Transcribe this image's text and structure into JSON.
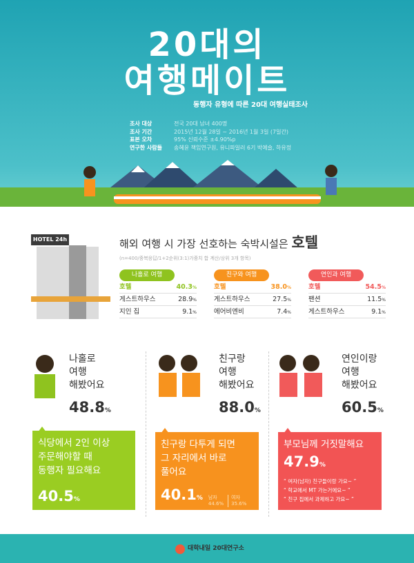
{
  "hero": {
    "title_line1": "20대의",
    "title_line2": "여행메이트",
    "subtitle": "동행자 유형에 따른 20대 여행실태조사",
    "info": [
      {
        "k": "조사 대상",
        "v": "전국 20대 남녀 400명"
      },
      {
        "k": "조사 기간",
        "v": "2015년 12월 28일 ~ 2016년 1월 3일 (7일간)"
      },
      {
        "k": "표본 오차",
        "v": "95% 신뢰수준 ±4.90%p"
      },
      {
        "k": "연구한 사람들",
        "v": "송혜윤 책임연구원, 유니파일러 6기 박예슬, 하유정"
      }
    ]
  },
  "lodging": {
    "sign": "HOTEL 24h",
    "question": "해외 여행 시 가장 선호하는 숙박시설은",
    "answer": "호텔",
    "note": "(n=400/중복응답/1+2순위(3:1)가중치 합 계산/상위 3개 항목)",
    "groups": [
      {
        "label": "나홀로 여행",
        "color": "#8fc31f",
        "rows": [
          {
            "n": "호텔",
            "v": "40.3"
          },
          {
            "n": "게스트하우스",
            "v": "28.9"
          },
          {
            "n": "지인 집",
            "v": "9.1"
          }
        ]
      },
      {
        "label": "친구와 여행",
        "color": "#f7931e",
        "rows": [
          {
            "n": "호텔",
            "v": "38.0"
          },
          {
            "n": "게스트하우스",
            "v": "27.5"
          },
          {
            "n": "에어비엔비",
            "v": "7.4"
          }
        ]
      },
      {
        "label": "연인과 여행",
        "color": "#f15a5a",
        "rows": [
          {
            "n": "호텔",
            "v": "54.5"
          },
          {
            "n": "팬션",
            "v": "11.5"
          },
          {
            "n": "게스트하우스",
            "v": "9.1"
          }
        ]
      }
    ]
  },
  "pct": "%",
  "experience": [
    {
      "label": [
        "나홀로",
        "여행",
        "해봤어요"
      ],
      "value": "48.8",
      "box_color": "#9acd22",
      "box_text": [
        "식당에서 2인 이상",
        "주문해야할 때",
        "동행자 필요해요"
      ],
      "box_value": "40.5"
    },
    {
      "label": [
        "친구랑",
        "여행",
        "해봤어요"
      ],
      "value": "88.0",
      "box_color": "#f7921e",
      "box_text": [
        "친구랑 다투게 되면",
        "그 자리에서 바로",
        "풀어요"
      ],
      "box_value": "40.1",
      "male_label": "남자",
      "male_value": "44.6",
      "female_label": "여자",
      "female_value": "35.6"
    },
    {
      "label": [
        "연인이랑",
        "여행",
        "해봤어요"
      ],
      "value": "60.5",
      "box_color": "#f25454",
      "box_text": [
        "부모님께 거짓말해요"
      ],
      "box_value": "47.9",
      "quotes": [
        "“ 여자(남자) 친구들이랑 가요~ ”",
        "“ 학교에서 MT 가는거에요~ ”",
        "“ 친구 집에서 과제하고 가요~ ”"
      ]
    }
  ],
  "footer": {
    "logo": "대학내일 20대연구소"
  }
}
